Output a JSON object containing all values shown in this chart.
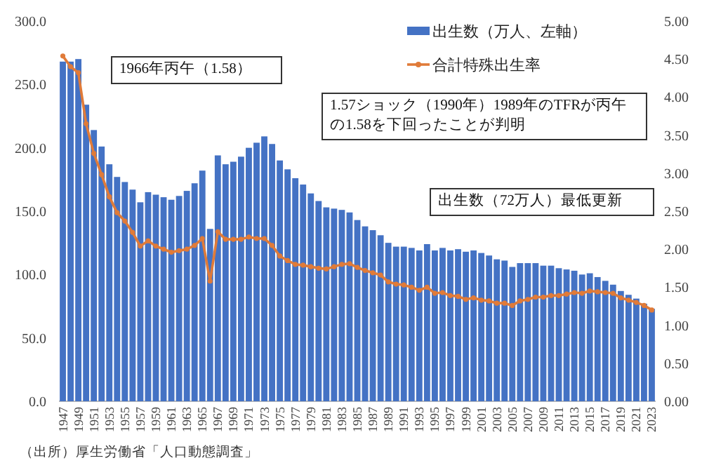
{
  "chart_data": {
    "type": "bar",
    "categories": [
      "1947",
      null,
      "1949",
      null,
      "1951",
      null,
      "1953",
      null,
      "1955",
      null,
      "1957",
      null,
      "1959",
      null,
      "1961",
      null,
      "1963",
      null,
      "1965",
      null,
      "1967",
      null,
      "1969",
      null,
      "1971",
      null,
      "1973",
      null,
      "1975",
      null,
      "1977",
      null,
      "1979",
      null,
      "1981",
      null,
      "1983",
      null,
      "1985",
      null,
      "1987",
      null,
      "1989",
      null,
      "1991",
      null,
      "1993",
      null,
      "1995",
      null,
      "1997",
      null,
      "1999",
      null,
      "2001",
      null,
      "2003",
      null,
      "2005",
      null,
      "2007",
      null,
      "2009",
      null,
      "2011",
      null,
      "2013",
      null,
      "2015",
      null,
      "2017",
      null,
      "2019",
      null,
      "2021",
      null,
      "2023"
    ],
    "series": [
      {
        "name": "出生数（万人、左軸）",
        "color": "#4472c4",
        "values": [
          268,
          268,
          270,
          234,
          214,
          201,
          187,
          177,
          173,
          167,
          157,
          165,
          163,
          161,
          159,
          162,
          166,
          172,
          182,
          136,
          194,
          187,
          189,
          193,
          200,
          204,
          209,
          203,
          190,
          183,
          176,
          171,
          164,
          158,
          153,
          152,
          151,
          149,
          143,
          138,
          135,
          131,
          125,
          122,
          122,
          121,
          119,
          124,
          119,
          121,
          119,
          120,
          118,
          119,
          117,
          115,
          112,
          111,
          106,
          109,
          109,
          109,
          107,
          107,
          105,
          104,
          103,
          100,
          101,
          98,
          95,
          92,
          87,
          84,
          81,
          77,
          73
        ]
      },
      {
        "name": "合計特殊出生率",
        "type": "line",
        "axis": "y2",
        "marker": "circle",
        "color": "#e07b39",
        "values": [
          4.54,
          4.4,
          4.32,
          3.65,
          3.26,
          2.98,
          2.69,
          2.48,
          2.37,
          2.22,
          2.04,
          2.11,
          2.04,
          2.0,
          1.96,
          1.98,
          2.0,
          2.05,
          2.14,
          1.58,
          2.23,
          2.13,
          2.13,
          2.13,
          2.16,
          2.14,
          2.14,
          2.05,
          1.91,
          1.85,
          1.8,
          1.79,
          1.77,
          1.75,
          1.74,
          1.77,
          1.8,
          1.81,
          1.76,
          1.72,
          1.69,
          1.66,
          1.57,
          1.54,
          1.53,
          1.5,
          1.46,
          1.5,
          1.42,
          1.43,
          1.39,
          1.38,
          1.34,
          1.36,
          1.33,
          1.32,
          1.29,
          1.29,
          1.26,
          1.32,
          1.34,
          1.37,
          1.37,
          1.39,
          1.39,
          1.41,
          1.43,
          1.42,
          1.45,
          1.44,
          1.43,
          1.42,
          1.36,
          1.33,
          1.3,
          1.26,
          1.2
        ]
      }
    ],
    "ylim": [
      0,
      300
    ],
    "yticks": [
      {
        "value": 0,
        "label": "0.0"
      },
      {
        "value": 50,
        "label": "50.0"
      },
      {
        "value": 100,
        "label": "100.0"
      },
      {
        "value": 150,
        "label": "150.0"
      },
      {
        "value": 200,
        "label": "200.0"
      },
      {
        "value": 250,
        "label": "250.0"
      },
      {
        "value": 300,
        "label": "300.0"
      }
    ],
    "y2lim": [
      0,
      5
    ],
    "y2ticks": [
      {
        "value": 0,
        "label": "0.00"
      },
      {
        "value": 0.5,
        "label": "0.50"
      },
      {
        "value": 1,
        "label": "1.00"
      },
      {
        "value": 1.5,
        "label": "1.50"
      },
      {
        "value": 2,
        "label": "2.00"
      },
      {
        "value": 2.5,
        "label": "2.50"
      },
      {
        "value": 3,
        "label": "3.00"
      },
      {
        "value": 3.5,
        "label": "3.50"
      },
      {
        "value": 4,
        "label": "4.00"
      },
      {
        "value": 4.5,
        "label": "4.50"
      },
      {
        "value": 5,
        "label": "5.00"
      }
    ],
    "legend": "top right",
    "annotations": [
      "1966年丙午（1.58）",
      "1.57ショック（1990年）1989年のTFRが丙午の1.58を下回ったことが判明",
      "出生数（72万人）最低更新",
      "（出所）厚生労働省「人口動態調査」"
    ]
  }
}
